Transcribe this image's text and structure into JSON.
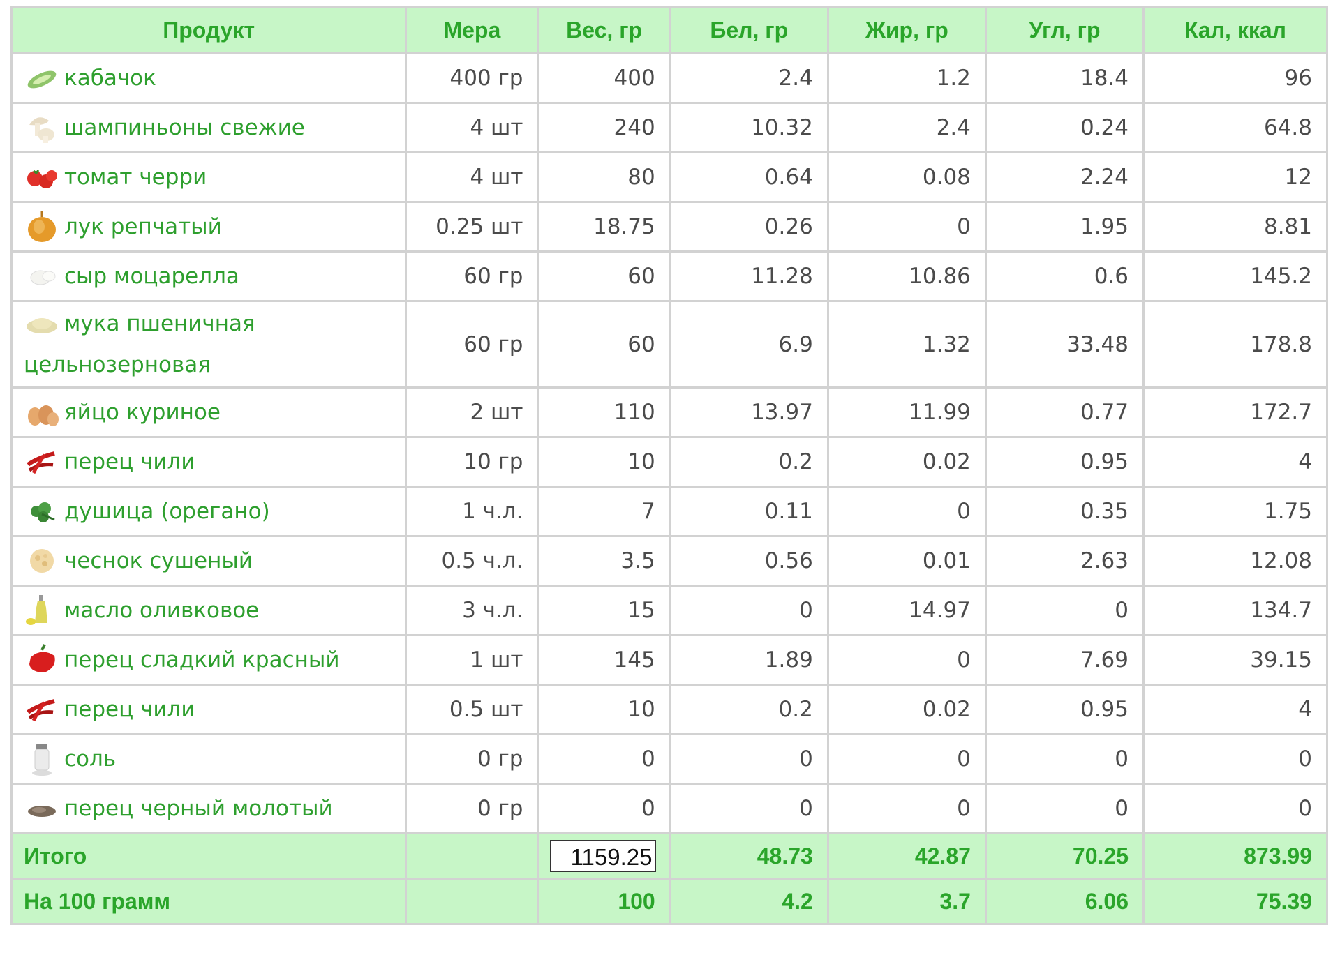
{
  "table": {
    "headers": [
      "Продукт",
      "Мера",
      "Вес, гр",
      "Бел, гр",
      "Жир, гр",
      "Угл, гр",
      "Кал, ккал"
    ],
    "rows": [
      {
        "icon": "zucchini-icon",
        "name": "кабачок",
        "measure": "400 гр",
        "weight": "400",
        "protein": "2.4",
        "fat": "1.2",
        "carbs": "18.4",
        "kcal": "96"
      },
      {
        "icon": "mushroom-icon",
        "name": "шампиньоны свежие",
        "measure": "4 шт",
        "weight": "240",
        "protein": "10.32",
        "fat": "2.4",
        "carbs": "0.24",
        "kcal": "64.8"
      },
      {
        "icon": "cherry-tomato-icon",
        "name": "томат черри",
        "measure": "4 шт",
        "weight": "80",
        "protein": "0.64",
        "fat": "0.08",
        "carbs": "2.24",
        "kcal": "12"
      },
      {
        "icon": "onion-icon",
        "name": "лук репчатый",
        "measure": "0.25 шт",
        "weight": "18.75",
        "protein": "0.26",
        "fat": "0",
        "carbs": "1.95",
        "kcal": "8.81"
      },
      {
        "icon": "mozzarella-icon",
        "name": "сыр моцарелла",
        "measure": "60 гр",
        "weight": "60",
        "protein": "11.28",
        "fat": "10.86",
        "carbs": "0.6",
        "kcal": "145.2"
      },
      {
        "icon": "flour-icon",
        "name": "мука пшеничная цельнозерновая",
        "measure": "60 гр",
        "weight": "60",
        "protein": "6.9",
        "fat": "1.32",
        "carbs": "33.48",
        "kcal": "178.8"
      },
      {
        "icon": "egg-icon",
        "name": "яйцо куриное",
        "measure": "2 шт",
        "weight": "110",
        "protein": "13.97",
        "fat": "11.99",
        "carbs": "0.77",
        "kcal": "172.7"
      },
      {
        "icon": "chili-pepper-icon",
        "name": "перец чили",
        "measure": "10 гр",
        "weight": "10",
        "protein": "0.2",
        "fat": "0.02",
        "carbs": "0.95",
        "kcal": "4"
      },
      {
        "icon": "oregano-icon",
        "name": "душица (орегано)",
        "measure": "1 ч.л.",
        "weight": "7",
        "protein": "0.11",
        "fat": "0",
        "carbs": "0.35",
        "kcal": "1.75"
      },
      {
        "icon": "dried-garlic-icon",
        "name": "чеснок сушеный",
        "measure": "0.5 ч.л.",
        "weight": "3.5",
        "protein": "0.56",
        "fat": "0.01",
        "carbs": "2.63",
        "kcal": "12.08"
      },
      {
        "icon": "olive-oil-icon",
        "name": "масло оливковое",
        "measure": "3 ч.л.",
        "weight": "15",
        "protein": "0",
        "fat": "14.97",
        "carbs": "0",
        "kcal": "134.7"
      },
      {
        "icon": "red-bell-pepper-icon",
        "name": "перец сладкий красный",
        "measure": "1 шт",
        "weight": "145",
        "protein": "1.89",
        "fat": "0",
        "carbs": "7.69",
        "kcal": "39.15"
      },
      {
        "icon": "chili-pepper-icon",
        "name": "перец чили",
        "measure": "0.5 шт",
        "weight": "10",
        "protein": "0.2",
        "fat": "0.02",
        "carbs": "0.95",
        "kcal": "4"
      },
      {
        "icon": "salt-icon",
        "name": "соль",
        "measure": "0 гр",
        "weight": "0",
        "protein": "0",
        "fat": "0",
        "carbs": "0",
        "kcal": "0"
      },
      {
        "icon": "black-pepper-icon",
        "name": "перец черный молотый",
        "measure": "0 гр",
        "weight": "0",
        "protein": "0",
        "fat": "0",
        "carbs": "0",
        "kcal": "0"
      }
    ],
    "total": {
      "label": "Итого",
      "weight": "1159.25",
      "protein": "48.73",
      "fat": "42.87",
      "carbs": "70.25",
      "kcal": "873.99"
    },
    "per100": {
      "label": "На 100 грамм",
      "weight": "100",
      "protein": "4.2",
      "fat": "3.7",
      "carbs": "6.06",
      "kcal": "75.39"
    }
  },
  "colors": {
    "header_bg": "#c7f6c7",
    "header_text": "#2aa52a",
    "link": "#2e9f2e",
    "border": "#d2d2d2",
    "cell_text": "#4b4b4b"
  }
}
